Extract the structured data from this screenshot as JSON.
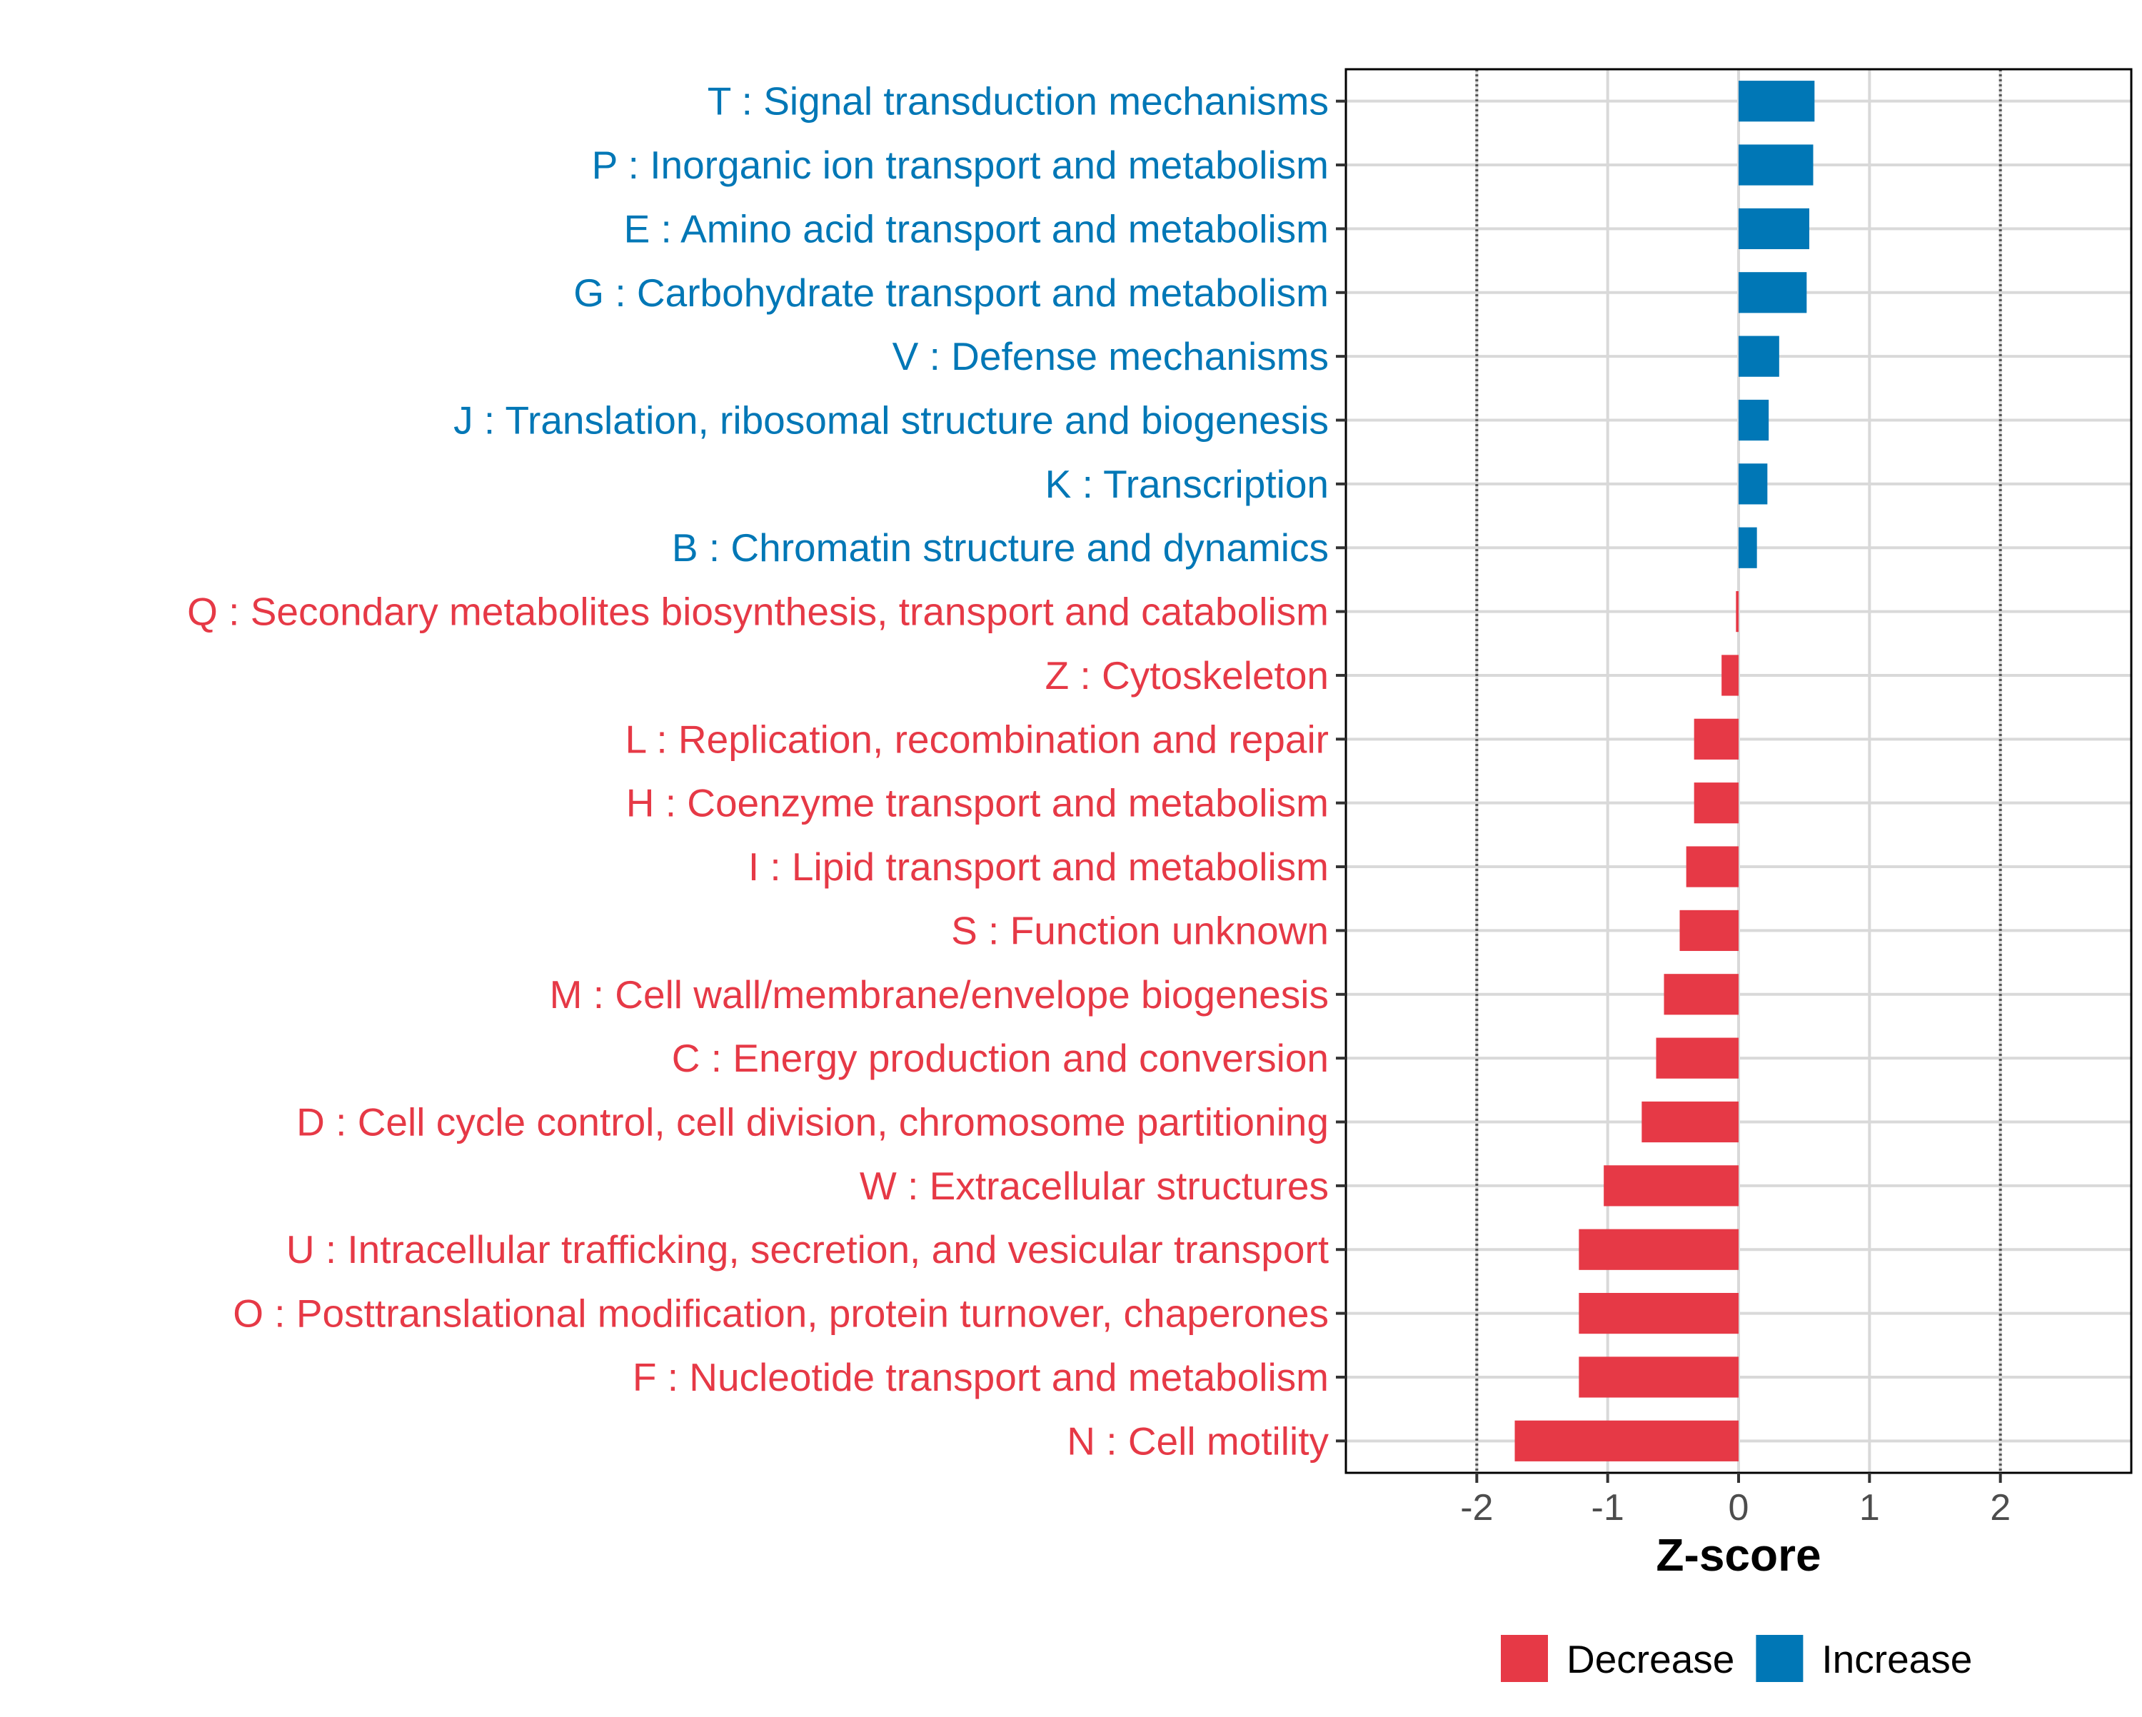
{
  "chart_data": {
    "type": "bar",
    "orientation": "horizontal",
    "xlabel": "Z-score",
    "xlim": [
      -3.0,
      3.0
    ],
    "xticks": [
      -2,
      -1,
      0,
      1,
      2
    ],
    "xtick_labels": [
      "-2",
      "-1",
      "0",
      "1",
      "2"
    ],
    "reference_lines": [
      -2,
      2
    ],
    "grid": true,
    "legend_position": "bottom",
    "colors": {
      "Decrease": "#E63946",
      "Increase": "#0077B6"
    },
    "legend": [
      {
        "label": "Decrease",
        "color": "#E63946"
      },
      {
        "label": "Increase",
        "color": "#0077B6"
      }
    ],
    "categories": [
      "T : Signal transduction mechanisms",
      "P : Inorganic ion transport and metabolism",
      "E : Amino acid transport and metabolism",
      "G : Carbohydrate transport and metabolism",
      "V : Defense mechanisms",
      "J : Translation, ribosomal structure and biogenesis",
      "K : Transcription",
      "B : Chromatin structure and dynamics",
      "Q : Secondary metabolites biosynthesis, transport and catabolism",
      "Z : Cytoskeleton",
      "L : Replication, recombination and repair",
      "H : Coenzyme transport and metabolism",
      "I : Lipid transport and metabolism",
      "S : Function unknown",
      "M : Cell wall/membrane/envelope biogenesis",
      "C : Energy production and conversion",
      "D : Cell cycle control, cell division, chromosome partitioning",
      "W : Extracellular structures",
      "U : Intracellular trafficking, secretion, and vesicular transport",
      "O : Posttranslational modification, protein turnover, chaperones",
      "F : Nucleotide transport and metabolism",
      "N : Cell motility"
    ],
    "values": [
      0.58,
      0.57,
      0.54,
      0.52,
      0.31,
      0.23,
      0.22,
      0.14,
      -0.02,
      -0.13,
      -0.34,
      -0.34,
      -0.4,
      -0.45,
      -0.57,
      -0.63,
      -0.74,
      -1.03,
      -1.22,
      -1.22,
      -1.22,
      -1.71
    ],
    "groups": [
      "Increase",
      "Increase",
      "Increase",
      "Increase",
      "Increase",
      "Increase",
      "Increase",
      "Increase",
      "Decrease",
      "Decrease",
      "Decrease",
      "Decrease",
      "Decrease",
      "Decrease",
      "Decrease",
      "Decrease",
      "Decrease",
      "Decrease",
      "Decrease",
      "Decrease",
      "Decrease",
      "Decrease"
    ]
  }
}
